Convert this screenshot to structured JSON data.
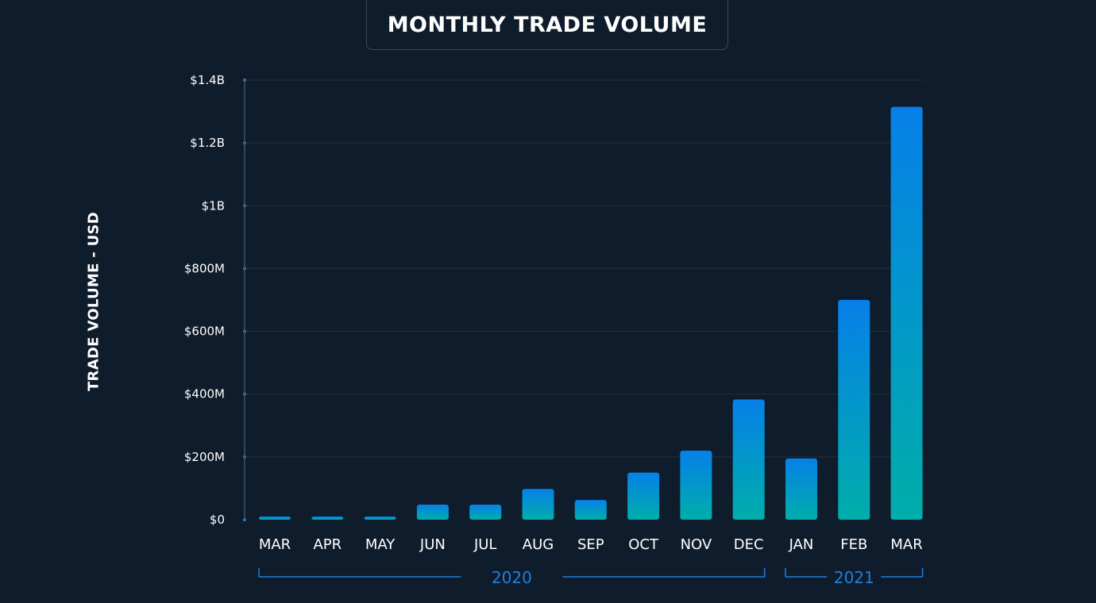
{
  "chart_data": {
    "type": "bar",
    "title": "MONTHLY TRADE VOLUME",
    "ylabel": "TRADE VOLUME - USD",
    "xlabel": "",
    "categories": [
      "MAR",
      "APR",
      "MAY",
      "JUN",
      "JUL",
      "AUG",
      "SEP",
      "OCT",
      "NOV",
      "DEC",
      "JAN",
      "FEB",
      "MAR"
    ],
    "values": [
      5000000,
      5000000,
      5000000,
      48000000,
      48000000,
      98000000,
      63000000,
      150000000,
      220000000,
      383000000,
      195000000,
      700000000,
      1315000000
    ],
    "ylim": [
      0,
      1400000000
    ],
    "yticks": [
      0,
      200000000,
      400000000,
      600000000,
      800000000,
      1000000000,
      1200000000,
      1400000000
    ],
    "ytick_labels": [
      "$0",
      "$200M",
      "$400M",
      "$600M",
      "$800M",
      "$1B",
      "$1.2B",
      "$1.4B"
    ],
    "grid": true,
    "groups": [
      {
        "label": "2020",
        "from": 0,
        "to": 9
      },
      {
        "label": "2021",
        "from": 10,
        "to": 12
      }
    ],
    "colors": {
      "bar_top": "#0680e8",
      "bar_bottom": "#00aeaa",
      "background": "#0f1c2b",
      "grid": "#1a2a3b",
      "axis": "#3d5468",
      "tick_dot": "#1f7fe0",
      "year_label": "#1f7fe0"
    }
  }
}
